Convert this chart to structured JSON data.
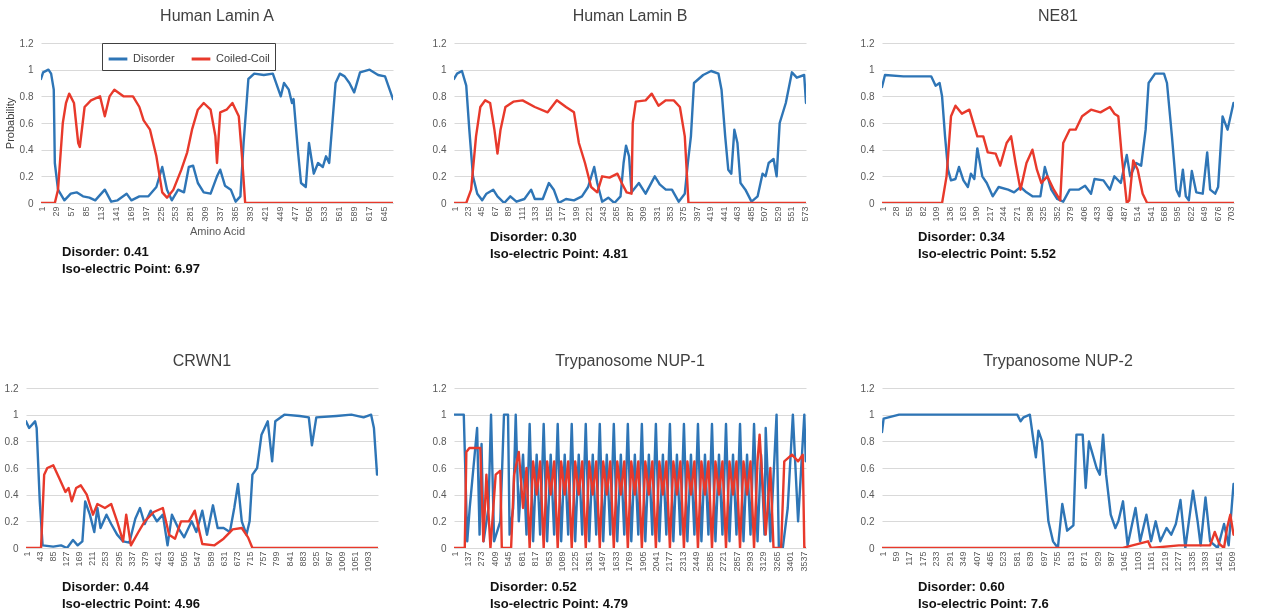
{
  "chart_data": [
    {
      "type": "line",
      "title": "Human Lamin A",
      "xlabel": "Amino Acid",
      "ylabel": "Probability",
      "xlim": [
        1,
        663
      ],
      "ylim": [
        0,
        1.2
      ],
      "xticks": [
        1,
        29,
        57,
        85,
        113,
        141,
        169,
        197,
        225,
        253,
        281,
        309,
        337,
        365,
        393,
        421,
        449,
        477,
        505,
        533,
        561,
        589,
        617,
        645
      ],
      "yticks": [
        0,
        0.2,
        0.4,
        0.6,
        0.8,
        1,
        1.2
      ],
      "grid": "y",
      "legend": "top",
      "annotations": [
        "Disorder: 0.41",
        "Iso-electric Point: 6.97"
      ],
      "series": [
        {
          "name": "Disorder",
          "color": "#2e75b6",
          "x": [
            1,
            5,
            15,
            20,
            25,
            27,
            33,
            45,
            57,
            68,
            80,
            92,
            103,
            121,
            133,
            145,
            162,
            171,
            186,
            203,
            218,
            229,
            238,
            247,
            259,
            270,
            279,
            287,
            296,
            307,
            320,
            332,
            338,
            347,
            358,
            367,
            376,
            382,
            391,
            402,
            420,
            437,
            452,
            458,
            467,
            473,
            476,
            484,
            490,
            499,
            505,
            514,
            522,
            531,
            537,
            543,
            555,
            563,
            572,
            581,
            590,
            601,
            619,
            635,
            648,
            663
          ],
          "values": [
            0.93,
            0.98,
            1.0,
            0.97,
            0.85,
            0.3,
            0.1,
            0.02,
            0.07,
            0.08,
            0.05,
            0.04,
            0.02,
            0.1,
            0.01,
            0.02,
            0.07,
            0.02,
            0.05,
            0.05,
            0.12,
            0.27,
            0.1,
            0.02,
            0.1,
            0.08,
            0.27,
            0.28,
            0.15,
            0.08,
            0.07,
            0.2,
            0.25,
            0.13,
            0.1,
            0.01,
            0.05,
            0.45,
            0.93,
            0.97,
            0.96,
            0.97,
            0.8,
            0.9,
            0.85,
            0.75,
            0.78,
            0.4,
            0.15,
            0.12,
            0.45,
            0.22,
            0.3,
            0.27,
            0.35,
            0.3,
            0.9,
            0.97,
            0.95,
            0.9,
            0.83,
            0.98,
            1.0,
            0.96,
            0.95,
            0.78
          ]
        },
        {
          "name": "Coiled-Coil",
          "color": "#e8392b",
          "x": [
            1,
            27,
            33,
            42,
            48,
            54,
            63,
            71,
            74,
            83,
            95,
            112,
            121,
            130,
            139,
            156,
            174,
            186,
            194,
            206,
            218,
            229,
            238,
            250,
            265,
            276,
            285,
            296,
            307,
            320,
            329,
            332,
            338,
            350,
            361,
            373,
            379,
            385,
            663
          ],
          "values": [
            0,
            0,
            0.1,
            0.6,
            0.75,
            0.82,
            0.75,
            0.45,
            0.42,
            0.72,
            0.77,
            0.8,
            0.65,
            0.8,
            0.85,
            0.8,
            0.8,
            0.72,
            0.62,
            0.55,
            0.35,
            0.08,
            0.04,
            0.1,
            0.25,
            0.38,
            0.55,
            0.7,
            0.75,
            0.7,
            0.5,
            0.3,
            0.68,
            0.7,
            0.75,
            0.65,
            0.35,
            0,
            0
          ]
        }
      ]
    },
    {
      "type": "line",
      "title": "Human Lamin B",
      "xlim": [
        1,
        576
      ],
      "ylim": [
        0,
        1.2
      ],
      "xticks": [
        1,
        23,
        45,
        67,
        89,
        111,
        133,
        155,
        177,
        199,
        221,
        243,
        265,
        287,
        309,
        331,
        353,
        375,
        397,
        419,
        441,
        463,
        485,
        507,
        529,
        551,
        573
      ],
      "yticks": [
        0,
        0.2,
        0.4,
        0.6,
        0.8,
        1,
        1.2
      ],
      "grid": "y",
      "annotations": [
        "Disorder: 0.30",
        "Iso-electric Point: 4.81"
      ],
      "series": [
        {
          "color": "#2e75b6",
          "x": [
            1,
            6,
            14,
            21,
            26,
            32,
            39,
            47,
            54,
            65,
            72,
            83,
            93,
            103,
            116,
            127,
            133,
            146,
            156,
            164,
            172,
            184,
            197,
            210,
            220,
            230,
            235,
            243,
            253,
            263,
            273,
            278,
            282,
            287,
            291,
            303,
            314,
            329,
            337,
            347,
            357,
            368,
            378,
            383,
            388,
            393,
            408,
            421,
            433,
            438,
            444,
            449,
            454,
            459,
            464,
            469,
            477,
            487,
            497,
            505,
            510,
            515,
            523,
            528,
            533,
            543,
            553,
            561,
            573,
            576
          ],
          "values": [
            0.93,
            0.97,
            0.99,
            0.88,
            0.55,
            0.2,
            0.07,
            0.02,
            0.07,
            0.1,
            0.05,
            0.0,
            0.05,
            0.01,
            0.03,
            0.1,
            0.03,
            0.03,
            0.15,
            0.1,
            0.0,
            0.03,
            0.02,
            0.05,
            0.12,
            0.27,
            0.15,
            0.01,
            0.04,
            0.0,
            0.05,
            0.3,
            0.43,
            0.35,
            0.08,
            0.15,
            0.07,
            0.2,
            0.14,
            0.1,
            0.1,
            0.01,
            0.07,
            0.3,
            0.5,
            0.9,
            0.96,
            0.99,
            0.97,
            0.85,
            0.5,
            0.25,
            0.22,
            0.55,
            0.45,
            0.15,
            0.1,
            0.01,
            0.05,
            0.22,
            0.2,
            0.3,
            0.33,
            0.2,
            0.6,
            0.75,
            0.98,
            0.94,
            0.96,
            0.75
          ]
        },
        {
          "color": "#e8392b",
          "x": [
            1,
            21,
            29,
            37,
            44,
            52,
            60,
            67,
            72,
            77,
            85,
            98,
            113,
            133,
            154,
            169,
            184,
            197,
            205,
            215,
            225,
            235,
            243,
            255,
            268,
            275,
            283,
            291,
            293,
            298,
            314,
            324,
            335,
            347,
            360,
            370,
            378,
            384,
            576
          ],
          "values": [
            0,
            0,
            0.1,
            0.5,
            0.72,
            0.77,
            0.75,
            0.55,
            0.37,
            0.55,
            0.72,
            0.76,
            0.77,
            0.72,
            0.68,
            0.77,
            0.72,
            0.68,
            0.45,
            0.3,
            0.12,
            0.08,
            0.2,
            0.19,
            0.22,
            0.15,
            0.08,
            0.07,
            0.6,
            0.76,
            0.77,
            0.82,
            0.73,
            0.77,
            0.77,
            0.72,
            0.5,
            0,
            0
          ]
        }
      ]
    },
    {
      "type": "line",
      "title": "NE81",
      "xlim": [
        1,
        710
      ],
      "ylim": [
        0,
        1.2
      ],
      "xticks": [
        1,
        28,
        55,
        82,
        109,
        136,
        163,
        190,
        217,
        244,
        271,
        298,
        325,
        352,
        379,
        406,
        433,
        460,
        487,
        514,
        541,
        568,
        595,
        622,
        649,
        676,
        703
      ],
      "yticks": [
        0,
        0.2,
        0.4,
        0.6,
        0.8,
        1,
        1.2
      ],
      "grid": "y",
      "annotations": [
        "Disorder: 0.34",
        "Iso-electric Point: 5.52"
      ],
      "series": [
        {
          "color": "#2e75b6",
          "x": [
            1,
            7,
            44,
            81,
            100,
            109,
            117,
            122,
            128,
            134,
            140,
            149,
            156,
            165,
            174,
            180,
            187,
            193,
            203,
            212,
            224,
            236,
            255,
            267,
            280,
            292,
            304,
            320,
            329,
            342,
            354,
            366,
            379,
            397,
            410,
            422,
            429,
            447,
            460,
            469,
            482,
            494,
            501,
            513,
            523,
            532,
            538,
            551,
            569,
            575,
            585,
            594,
            600,
            607,
            613,
            619,
            625,
            634,
            647,
            656,
            662,
            672,
            678,
            687,
            697,
            709
          ],
          "values": [
            0.87,
            0.96,
            0.95,
            0.95,
            0.95,
            0.88,
            0.9,
            0.8,
            0.5,
            0.25,
            0.17,
            0.18,
            0.27,
            0.17,
            0.12,
            0.22,
            0.18,
            0.41,
            0.2,
            0.15,
            0.05,
            0.12,
            0.1,
            0.08,
            0.12,
            0.08,
            0.05,
            0.05,
            0.27,
            0.1,
            0.03,
            0.01,
            0.1,
            0.1,
            0.13,
            0.07,
            0.18,
            0.17,
            0.1,
            0.2,
            0.15,
            0.36,
            0.2,
            0.3,
            0.28,
            0.55,
            0.9,
            0.97,
            0.97,
            0.9,
            0.5,
            0.1,
            0.05,
            0.25,
            0.05,
            0.02,
            0.24,
            0.08,
            0.07,
            0.38,
            0.1,
            0.07,
            0.12,
            0.65,
            0.55,
            0.75
          ]
        },
        {
          "color": "#e8392b",
          "x": [
            1,
            122,
            131,
            140,
            149,
            162,
            177,
            193,
            205,
            214,
            230,
            239,
            252,
            261,
            270,
            280,
            292,
            304,
            313,
            322,
            334,
            347,
            360,
            366,
            379,
            391,
            404,
            422,
            441,
            460,
            469,
            477,
            484,
            494,
            499,
            507,
            516,
            526,
            535,
            710
          ],
          "values": [
            0,
            0,
            0.2,
            0.65,
            0.73,
            0.67,
            0.7,
            0.5,
            0.5,
            0.38,
            0.37,
            0.28,
            0.45,
            0.5,
            0.3,
            0.1,
            0.3,
            0.4,
            0.25,
            0.15,
            0.2,
            0.1,
            0.02,
            0.45,
            0.55,
            0.55,
            0.65,
            0.7,
            0.68,
            0.72,
            0.67,
            0.65,
            0.35,
            0,
            0.02,
            0.32,
            0.25,
            0.07,
            0,
            0
          ]
        }
      ]
    },
    {
      "type": "line",
      "title": "CRWN1",
      "xlim": [
        1,
        1125
      ],
      "ylim": [
        0,
        1.2
      ],
      "xticks": [
        1,
        43,
        85,
        127,
        169,
        211,
        253,
        295,
        337,
        379,
        421,
        463,
        505,
        547,
        589,
        631,
        673,
        715,
        757,
        799,
        841,
        883,
        925,
        967,
        1009,
        1051,
        1093
      ],
      "yticks": [
        0,
        0.2,
        0.4,
        0.6,
        0.8,
        1,
        1.2
      ],
      "grid": "y",
      "annotations": [
        "Disorder: 0.44",
        "Iso-electric Point: 4.96"
      ],
      "series": [
        {
          "color": "#2e75b6",
          "x": [
            1,
            11,
            30,
            35,
            45,
            54,
            88,
            113,
            132,
            151,
            166,
            181,
            190,
            205,
            219,
            229,
            239,
            258,
            273,
            292,
            311,
            331,
            350,
            365,
            380,
            399,
            419,
            438,
            453,
            467,
            487,
            506,
            530,
            545,
            564,
            579,
            598,
            613,
            632,
            652,
            666,
            678,
            690,
            705,
            715,
            724,
            739,
            753,
            773,
            787,
            797,
            826,
            875,
            904,
            914,
            928,
            992,
            1040,
            1079,
            1103,
            1112,
            1122
          ],
          "values": [
            0.95,
            0.9,
            0.95,
            0.9,
            0.35,
            0.02,
            0.01,
            0.02,
            0.0,
            0.06,
            0.02,
            0.05,
            0.35,
            0.25,
            0.12,
            0.3,
            0.15,
            0.25,
            0.18,
            0.1,
            0.05,
            0.04,
            0.22,
            0.3,
            0.18,
            0.28,
            0.2,
            0.25,
            0.02,
            0.25,
            0.15,
            0.08,
            0.2,
            0.12,
            0.28,
            0.1,
            0.32,
            0.15,
            0.15,
            0.12,
            0.3,
            0.48,
            0.2,
            0.1,
            0.2,
            0.55,
            0.6,
            0.85,
            0.95,
            0.65,
            0.95,
            1.0,
            0.99,
            0.98,
            0.77,
            0.98,
            0.99,
            1.0,
            0.98,
            1.0,
            0.9,
            0.55
          ]
        },
        {
          "color": "#e8392b",
          "x": [
            1,
            49,
            59,
            69,
            88,
            108,
            127,
            137,
            147,
            161,
            176,
            195,
            215,
            229,
            253,
            273,
            292,
            311,
            321,
            336,
            360,
            380,
            409,
            438,
            458,
            477,
            496,
            521,
            540,
            555,
            564,
            603,
            632,
            661,
            690,
            710,
            724,
            1125
          ],
          "values": [
            0,
            0,
            0.55,
            0.6,
            0.62,
            0.52,
            0.42,
            0.45,
            0.35,
            0.45,
            0.47,
            0.4,
            0.25,
            0.33,
            0.3,
            0.33,
            0.2,
            0.05,
            0.25,
            0.02,
            0.12,
            0.2,
            0.27,
            0.3,
            0.1,
            0.07,
            0.2,
            0.2,
            0.28,
            0.12,
            0.03,
            0.02,
            0.07,
            0.14,
            0.15,
            0.08,
            0,
            0
          ]
        }
      ]
    },
    {
      "type": "line",
      "title": "Trypanosome NUP-1",
      "xlim": [
        1,
        3565
      ],
      "ylim": [
        0,
        1.2
      ],
      "xticks": [
        1,
        137,
        273,
        409,
        545,
        681,
        817,
        953,
        1089,
        1225,
        1361,
        1497,
        1633,
        1769,
        1905,
        2041,
        2177,
        2313,
        2449,
        2585,
        2721,
        2857,
        2993,
        3129,
        3265,
        3401,
        3537
      ],
      "yticks": [
        0,
        0.2,
        0.4,
        0.6,
        0.8,
        1,
        1.2
      ],
      "grid": "y",
      "annotations": [
        "Disorder: 0.52",
        "Iso-electric Point: 4.79"
      ],
      "series": [
        {
          "color": "#2e75b6",
          "x": [
            1,
            100,
            115,
            135,
            160,
            235,
            260,
            280,
            300,
            350,
            376,
            407,
            470,
            507,
            548,
            564,
            600,
            626,
            657,
            700,
            735,
            767,
            802,
            838,
            873,
            909,
            944,
            980,
            1015,
            1051,
            1086,
            1122,
            1157,
            1193,
            1228,
            1264,
            1299,
            1335,
            1370,
            1406,
            1441,
            1477,
            1512,
            1548,
            1583,
            1619,
            1654,
            1690,
            1725,
            1761,
            1796,
            1832,
            1867,
            1903,
            1938,
            1974,
            2009,
            2045,
            2080,
            2116,
            2151,
            2187,
            2222,
            2258,
            2293,
            2329,
            2364,
            2400,
            2435,
            2471,
            2506,
            2542,
            2577,
            2613,
            2648,
            2684,
            2719,
            2755,
            2790,
            2826,
            2861,
            2897,
            2932,
            2968,
            3003,
            3039,
            3074,
            3110,
            3145,
            3157,
            3204,
            3267,
            3290,
            3330,
            3380,
            3432,
            3485,
            3548,
            3563
          ],
          "values": [
            1.0,
            1.0,
            0.6,
            0.05,
            0.3,
            0.9,
            0.1,
            0.78,
            0.05,
            0.3,
            1.0,
            0.05,
            0.2,
            1.0,
            1.0,
            0.1,
            0.3,
            1.0,
            0.2,
            0.7,
            0.1,
            0.93,
            0.05,
            0.7,
            0.1,
            0.93,
            0.05,
            0.7,
            0.1,
            0.93,
            0.05,
            0.7,
            0.1,
            0.93,
            0.05,
            0.7,
            0.1,
            0.93,
            0.05,
            0.7,
            0.1,
            0.93,
            0.05,
            0.7,
            0.1,
            0.93,
            0.05,
            0.7,
            0.1,
            0.93,
            0.05,
            0.7,
            0.1,
            0.93,
            0.05,
            0.7,
            0.1,
            0.93,
            0.05,
            0.7,
            0.1,
            0.93,
            0.05,
            0.7,
            0.1,
            0.93,
            0.05,
            0.7,
            0.1,
            0.93,
            0.05,
            0.7,
            0.1,
            0.93,
            0.05,
            0.7,
            0.1,
            0.93,
            0.05,
            0.7,
            0.1,
            0.93,
            0.05,
            0.7,
            0.1,
            0.93,
            0.05,
            0.7,
            0.1,
            0.9,
            0.05,
            1.0,
            0.0,
            0.0,
            0.3,
            1.0,
            0.2,
            1.0,
            0.65
          ]
        },
        {
          "color": "#e8392b",
          "x": [
            1,
            110,
            126,
            157,
            267,
            298,
            329,
            370,
            423,
            470,
            485,
            579,
            610,
            657,
            700,
            735,
            767,
            802,
            838,
            873,
            909,
            944,
            980,
            1015,
            1051,
            1086,
            1122,
            1157,
            1193,
            1228,
            1264,
            1299,
            1335,
            1370,
            1406,
            1441,
            1477,
            1512,
            1548,
            1583,
            1619,
            1654,
            1690,
            1725,
            1761,
            1796,
            1832,
            1867,
            1903,
            1938,
            1974,
            2009,
            2045,
            2080,
            2116,
            2151,
            2187,
            2222,
            2258,
            2293,
            2329,
            2364,
            2400,
            2435,
            2471,
            2506,
            2542,
            2577,
            2613,
            2648,
            2684,
            2719,
            2755,
            2790,
            2826,
            2861,
            2897,
            2932,
            2968,
            3003,
            3039,
            3074,
            3095,
            3157,
            3204,
            3236,
            3313,
            3345,
            3423,
            3485,
            3532,
            3548,
            3563
          ],
          "values": [
            0,
            0,
            0.72,
            0.75,
            0.75,
            0.05,
            0.55,
            0,
            0.55,
            0.58,
            0,
            0,
            0.55,
            0.72,
            0.3,
            0.6,
            0,
            0.65,
            0.4,
            0.65,
            0,
            0.65,
            0.4,
            0.65,
            0,
            0.65,
            0.4,
            0.65,
            0,
            0.65,
            0.4,
            0.65,
            0,
            0.65,
            0.4,
            0.65,
            0,
            0.65,
            0.4,
            0.65,
            0,
            0.65,
            0.4,
            0.65,
            0,
            0.65,
            0.4,
            0.65,
            0,
            0.65,
            0.4,
            0.65,
            0,
            0.65,
            0.4,
            0.65,
            0,
            0.65,
            0.4,
            0.65,
            0,
            0.65,
            0.4,
            0.65,
            0,
            0.65,
            0.4,
            0.65,
            0,
            0.65,
            0.4,
            0.65,
            0,
            0.65,
            0.4,
            0.65,
            0,
            0.65,
            0.4,
            0.65,
            0,
            0.65,
            0.85,
            0.1,
            0.6,
            0,
            0,
            0.65,
            0.7,
            0.65,
            0.7,
            0,
            0
          ]
        }
      ]
    },
    {
      "type": "line",
      "title": "Trypanosome NUP-2",
      "xlim": [
        1,
        1520
      ],
      "ylim": [
        0,
        1.2
      ],
      "xticks": [
        1,
        59,
        117,
        175,
        233,
        291,
        349,
        407,
        465,
        523,
        581,
        639,
        697,
        755,
        813,
        871,
        929,
        987,
        1045,
        1103,
        1161,
        1219,
        1277,
        1335,
        1393,
        1451,
        1509
      ],
      "yticks": [
        0,
        0.2,
        0.4,
        0.6,
        0.8,
        1,
        1.2
      ],
      "grid": "y",
      "annotations": [
        "Disorder: 0.60",
        "Iso-electric Point: 7.6"
      ],
      "series": [
        {
          "color": "#2e75b6",
          "x": [
            1,
            8,
            75,
            343,
            585,
            599,
            612,
            639,
            659,
            665,
            676,
            692,
            705,
            719,
            739,
            760,
            779,
            800,
            827,
            840,
            867,
            880,
            894,
            927,
            941,
            955,
            968,
            988,
            1008,
            1021,
            1041,
            1061,
            1095,
            1115,
            1142,
            1162,
            1182,
            1202,
            1229,
            1249,
            1269,
            1289,
            1310,
            1343,
            1363,
            1376,
            1397,
            1417,
            1450,
            1477,
            1497,
            1518
          ],
          "values": [
            0.87,
            0.97,
            1.0,
            1.0,
            1.0,
            0.95,
            0.98,
            1.0,
            0.75,
            0.68,
            0.88,
            0.8,
            0.5,
            0.2,
            0.05,
            0.0,
            0.33,
            0.13,
            0.17,
            0.85,
            0.85,
            0.45,
            0.8,
            0.6,
            0.55,
            0.85,
            0.55,
            0.25,
            0.15,
            0.2,
            0.35,
            0.02,
            0.3,
            0.05,
            0.25,
            0.05,
            0.2,
            0.05,
            0.15,
            0.1,
            0.18,
            0.36,
            0.0,
            0.43,
            0.2,
            0.02,
            0.38,
            0.05,
            0.0,
            0.18,
            0.02,
            0.48
          ]
        },
        {
          "color": "#e8392b",
          "x": [
            1,
            1040,
            1082,
            1149,
            1162,
            1282,
            1417,
            1437,
            1457,
            1477,
            1490,
            1504,
            1518
          ],
          "values": [
            0,
            0,
            0.02,
            0.05,
            0,
            0.02,
            0.02,
            0.12,
            0.03,
            0,
            0.15,
            0.25,
            0.1
          ]
        }
      ]
    }
  ]
}
